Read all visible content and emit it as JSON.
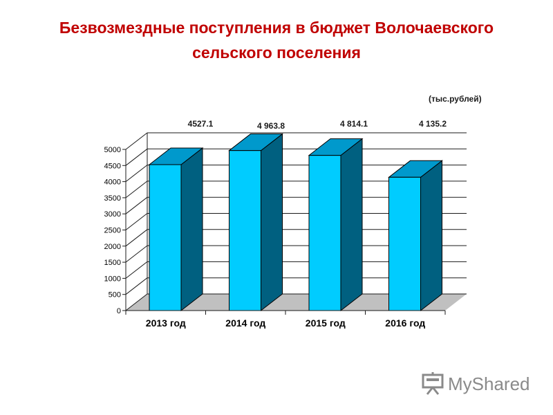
{
  "title": "Безвозмездные поступления в бюджет Волочаевского сельского поселения",
  "unit_label": "(тыс.рублей)",
  "watermark": {
    "text": "MyShared",
    "icon": "presentation-board-icon",
    "color": "#8a8a8a"
  },
  "colors": {
    "bar_front": "#00ccff",
    "bar_side": "#006080",
    "bar_top": "#0099cc",
    "floor": "#c0c0c0",
    "grid": "#1a1a1a",
    "title": "#c00000"
  },
  "chart_data": {
    "type": "bar",
    "style": "3d-column",
    "categories": [
      "2013 год",
      "2014 год",
      "2015 год",
      "2016 год"
    ],
    "values": [
      4527.1,
      4963.8,
      4814.1,
      4135.2
    ],
    "value_labels": [
      "4527.1",
      "4 963.8",
      "4 814.1",
      "4 135.2"
    ],
    "ylim": [
      0,
      5000
    ],
    "yticks": [
      0,
      500,
      1000,
      1500,
      2000,
      2500,
      3000,
      3500,
      4000,
      4500,
      5000
    ],
    "grid": true,
    "legend": "none"
  }
}
